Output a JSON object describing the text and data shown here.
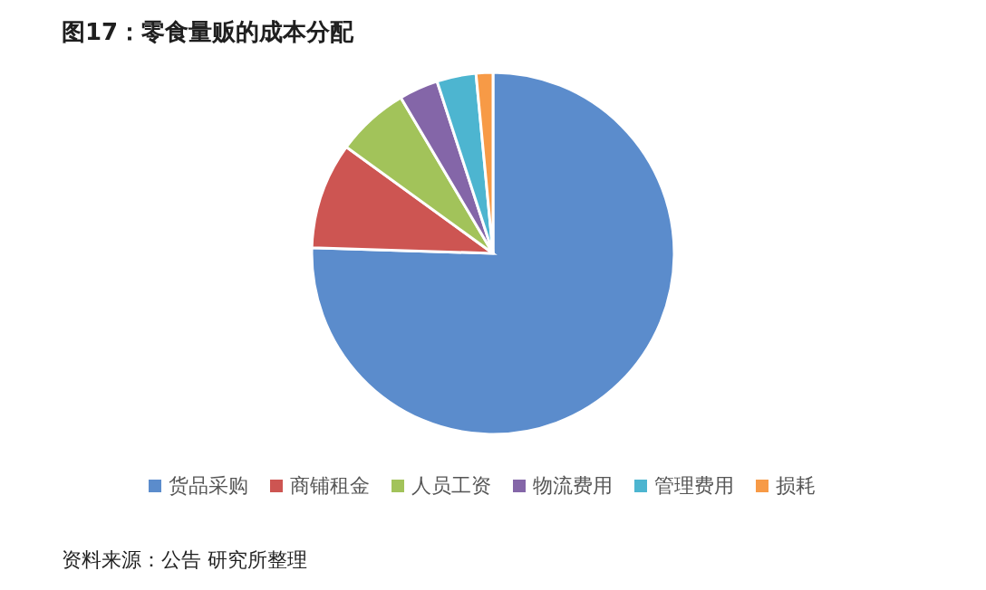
{
  "chart_data": {
    "type": "pie",
    "title": "图17：零食量贩的成本分配",
    "categories": [
      "货品采购",
      "商铺租金",
      "人员工资",
      "物流费用",
      "管理费用",
      "损耗"
    ],
    "values": [
      75.5,
      9.5,
      6.5,
      3.5,
      3.5,
      1.5
    ],
    "colors": [
      "#5b8ccc",
      "#cd5552",
      "#a2c35a",
      "#8466a8",
      "#4db5d0",
      "#f79a46"
    ],
    "legend": "bottom",
    "annotations": [
      "资料来源：公告 研究所整理"
    ]
  }
}
